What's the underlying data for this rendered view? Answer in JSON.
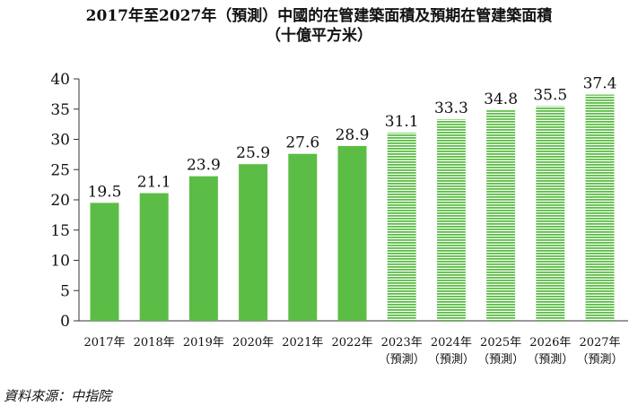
{
  "chart_data": {
    "type": "bar",
    "title": "2017年至2027年（預測）中國的在管建築面積及預期在管建築面積",
    "subtitle": "（十億平方米）",
    "categories": [
      {
        "year": "2017年",
        "note": ""
      },
      {
        "year": "2018年",
        "note": ""
      },
      {
        "year": "2019年",
        "note": ""
      },
      {
        "year": "2020年",
        "note": ""
      },
      {
        "year": "2021年",
        "note": ""
      },
      {
        "year": "2022年",
        "note": ""
      },
      {
        "year": "2023年",
        "note": "（預測）"
      },
      {
        "year": "2024年",
        "note": "（預測）"
      },
      {
        "year": "2025年",
        "note": "（預測）"
      },
      {
        "year": "2026年",
        "note": "（預測）"
      },
      {
        "year": "2027年",
        "note": "（預測）"
      }
    ],
    "values": [
      19.5,
      21.1,
      23.9,
      25.9,
      27.6,
      28.9,
      31.1,
      33.3,
      34.8,
      35.5,
      37.4
    ],
    "value_labels": [
      "19.5",
      "21.1",
      "23.9",
      "25.9",
      "27.6",
      "28.9",
      "31.1",
      "33.3",
      "34.8",
      "35.5",
      "37.4"
    ],
    "forecast": [
      false,
      false,
      false,
      false,
      false,
      false,
      true,
      true,
      true,
      true,
      true
    ],
    "ylim": [
      0,
      40
    ],
    "yticks": [
      0,
      5,
      10,
      15,
      20,
      25,
      30,
      35,
      40
    ],
    "ytick_labels": [
      "0",
      "5",
      "10",
      "15",
      "20",
      "25",
      "30",
      "35",
      "40"
    ],
    "grid": false,
    "colors": {
      "actual": "#5bbd45",
      "forecast": "#5bbd45",
      "axis": "#333333",
      "text": "#111111"
    }
  },
  "source": "資料來源：中指院"
}
